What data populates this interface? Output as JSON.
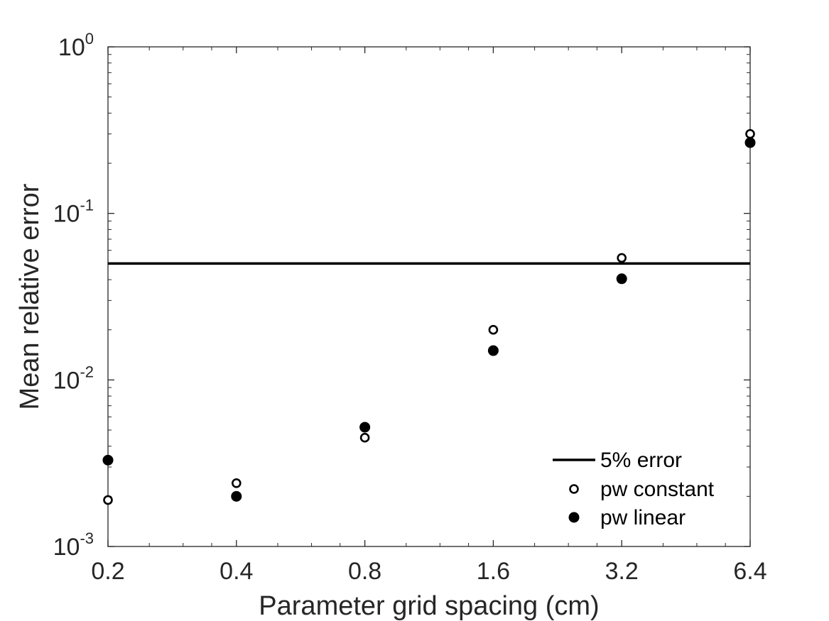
{
  "chart_data": {
    "type": "scatter",
    "xlabel": "Parameter grid spacing (cm)",
    "ylabel": "Mean relative error",
    "x_scale": "log2",
    "y_scale": "log10",
    "xlim": [
      0.2,
      6.4
    ],
    "ylim": [
      0.001,
      1
    ],
    "x_ticks": [
      0.2,
      0.4,
      0.8,
      1.6,
      3.2,
      6.4
    ],
    "x_tick_labels": [
      "0.2",
      "0.4",
      "0.8",
      "1.6",
      "3.2",
      "6.4"
    ],
    "y_ticks": [
      {
        "value": 0.001,
        "base": "10",
        "exp": "-3"
      },
      {
        "value": 0.01,
        "base": "10",
        "exp": "-2"
      },
      {
        "value": 0.1,
        "base": "10",
        "exp": "-1"
      },
      {
        "value": 1,
        "base": "10",
        "exp": "0"
      }
    ],
    "grid": false,
    "legend_position": "bottom-right",
    "reference_lines": [
      {
        "name": "5% error",
        "y": 0.05,
        "color": "#000000"
      }
    ],
    "series": [
      {
        "name": "pw constant",
        "marker": "open-circle",
        "color": "#000000",
        "x": [
          0.2,
          0.4,
          0.8,
          1.6,
          3.2,
          6.4
        ],
        "y": [
          0.0019,
          0.0024,
          0.0045,
          0.02,
          0.054,
          0.3
        ]
      },
      {
        "name": "pw linear",
        "marker": "filled-circle",
        "color": "#000000",
        "x": [
          0.2,
          0.4,
          0.8,
          1.6,
          3.2,
          6.4
        ],
        "y": [
          0.0033,
          0.002,
          0.0052,
          0.015,
          0.0405,
          0.266
        ]
      }
    ]
  }
}
